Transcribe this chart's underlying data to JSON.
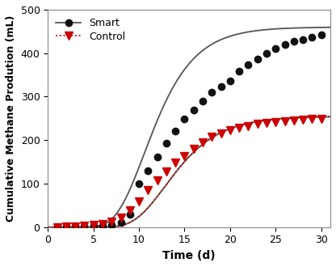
{
  "smart_x": [
    1,
    2,
    3,
    4,
    5,
    6,
    7,
    8,
    9,
    10,
    11,
    12,
    13,
    14,
    15,
    16,
    17,
    18,
    19,
    20,
    21,
    22,
    23,
    24,
    25,
    26,
    27,
    28,
    29,
    30
  ],
  "smart_y": [
    0,
    1,
    1,
    2,
    3,
    4,
    5,
    10,
    30,
    100,
    130,
    162,
    193,
    220,
    248,
    270,
    290,
    310,
    323,
    337,
    358,
    373,
    387,
    400,
    410,
    420,
    427,
    432,
    437,
    443
  ],
  "control_x": [
    1,
    2,
    3,
    4,
    5,
    6,
    7,
    8,
    9,
    10,
    11,
    12,
    13,
    14,
    15,
    16,
    17,
    18,
    19,
    20,
    21,
    22,
    23,
    24,
    25,
    26,
    27,
    28,
    29,
    30
  ],
  "control_y": [
    0,
    1,
    2,
    3,
    5,
    7,
    13,
    22,
    38,
    60,
    85,
    108,
    128,
    148,
    163,
    180,
    195,
    207,
    216,
    222,
    228,
    233,
    237,
    240,
    242,
    244,
    246,
    247,
    248,
    249
  ],
  "smart_color": "#111111",
  "control_color": "#cc0000",
  "smart_fit_color": "#555555",
  "control_fit_color": "#555555",
  "smart_marker": "o",
  "control_marker": "v",
  "smart_linestyle": "-",
  "control_linestyle": ":",
  "xlabel": "Time (d)",
  "ylabel": "Cumulative Methane Prodution (mL)",
  "xlim": [
    0,
    31
  ],
  "ylim": [
    0,
    500
  ],
  "xticks": [
    0,
    5,
    10,
    15,
    20,
    25,
    30
  ],
  "yticks": [
    0,
    100,
    200,
    300,
    400,
    500
  ],
  "legend_smart": "Smart",
  "legend_control": "Control",
  "smart_Pm": 460,
  "smart_Rm": 55,
  "smart_lag": 7.5,
  "control_Pm": 255,
  "control_Rm": 28,
  "control_lag": 9.5
}
